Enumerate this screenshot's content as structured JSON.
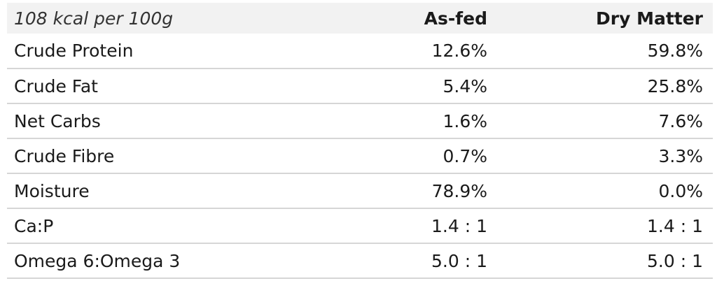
{
  "table": {
    "kcal_label": "108 kcal per 100g",
    "col_asfed": "As-fed",
    "col_dry_matter": "Dry Matter",
    "rows": [
      {
        "label": "Crude Protein",
        "asfed": "12.6%",
        "dry": "59.8%"
      },
      {
        "label": "Crude Fat",
        "asfed": "5.4%",
        "dry": "25.8%"
      },
      {
        "label": "Net Carbs",
        "asfed": "1.6%",
        "dry": "7.6%"
      },
      {
        "label": "Crude Fibre",
        "asfed": "0.7%",
        "dry": "3.3%"
      },
      {
        "label": "Moisture",
        "asfed": "78.9%",
        "dry": "0.0%"
      },
      {
        "label": "Ca:P",
        "asfed": "1.4 : 1",
        "dry": "1.4 : 1"
      },
      {
        "label": "Omega 6:Omega 3",
        "asfed": "5.0 : 1",
        "dry": "5.0 : 1"
      }
    ]
  }
}
